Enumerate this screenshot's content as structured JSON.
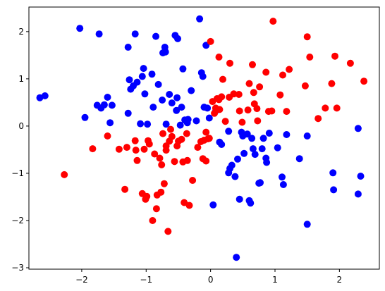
{
  "chart_data": {
    "type": "scatter",
    "title": "",
    "xlabel": "",
    "ylabel": "",
    "xlim": [
      -2.82,
      2.62
    ],
    "ylim": [
      -3.03,
      2.52
    ],
    "grid": false,
    "x_ticks": [
      {
        "value": -2,
        "label": "−2"
      },
      {
        "value": -1,
        "label": "−1"
      },
      {
        "value": 0,
        "label": "0"
      },
      {
        "value": 1,
        "label": "1"
      },
      {
        "value": 2,
        "label": "2"
      }
    ],
    "y_ticks": [
      {
        "value": 2,
        "label": "2"
      },
      {
        "value": 1,
        "label": "1"
      },
      {
        "value": 0,
        "label": "0"
      },
      {
        "value": -1,
        "label": "−1"
      },
      {
        "value": -2,
        "label": "−2"
      },
      {
        "value": -3,
        "label": "−3"
      }
    ],
    "series": [
      {
        "color": "#0000ff",
        "points": [
          [
            -2.65,
            0.6
          ],
          [
            -2.57,
            0.64
          ],
          [
            -2.03,
            2.07
          ],
          [
            -1.95,
            0.18
          ],
          [
            -1.73,
            1.95
          ],
          [
            -1.76,
            0.44
          ],
          [
            -1.7,
            0.38
          ],
          [
            -1.65,
            0.45
          ],
          [
            -1.6,
            0.61
          ],
          [
            -1.56,
            0.07
          ],
          [
            -1.53,
            0.44
          ],
          [
            -1.28,
            1.67
          ],
          [
            -1.28,
            0.27
          ],
          [
            -1.26,
            0.98
          ],
          [
            -1.24,
            0.78
          ],
          [
            -1.2,
            0.85
          ],
          [
            -1.17,
            1.95
          ],
          [
            -1.14,
            0.93
          ],
          [
            -1.09,
            0.05
          ],
          [
            -1.06,
            1.05
          ],
          [
            -1.04,
            1.22
          ],
          [
            -1.02,
            0.68
          ],
          [
            -0.98,
            0.04
          ],
          [
            -0.91,
            1.1
          ],
          [
            -0.89,
            0.4
          ],
          [
            -0.85,
            1.9
          ],
          [
            -0.81,
            0.88
          ],
          [
            -0.75,
            0.55
          ],
          [
            -0.74,
            1.55
          ],
          [
            -0.71,
            1.67
          ],
          [
            -0.7,
            1.57
          ],
          [
            -0.69,
            0.04
          ],
          [
            -0.64,
            0.67
          ],
          [
            -0.6,
            0.49
          ],
          [
            -0.55,
            1.92
          ],
          [
            -0.53,
            0.33
          ],
          [
            -0.52,
            0.6
          ],
          [
            -0.51,
            1.85
          ],
          [
            -0.47,
            0.02
          ],
          [
            -0.45,
            0.4
          ],
          [
            -0.43,
            1.21
          ],
          [
            -0.4,
            0.13
          ],
          [
            -0.36,
            0.07
          ],
          [
            -0.35,
            0.14
          ],
          [
            -0.3,
            0.75
          ],
          [
            -0.22,
            0.11
          ],
          [
            -0.17,
            2.27
          ],
          [
            -0.14,
            1.13
          ],
          [
            -0.12,
            1.05
          ],
          [
            -0.1,
            0.4
          ],
          [
            -0.07,
            1.71
          ],
          [
            -0.05,
            0.38
          ],
          [
            -0.02,
            0.17
          ],
          [
            0.04,
            -1.67
          ],
          [
            0.08,
            0.32
          ],
          [
            0.14,
            -0.34
          ],
          [
            0.17,
            -0.39
          ],
          [
            0.28,
            -0.11
          ],
          [
            0.28,
            -0.99
          ],
          [
            0.3,
            -0.9
          ],
          [
            0.33,
            -0.83
          ],
          [
            0.38,
            -1.07
          ],
          [
            0.4,
            -2.78
          ],
          [
            0.42,
            -0.7
          ],
          [
            0.45,
            -1.55
          ],
          [
            0.48,
            -0.13
          ],
          [
            0.5,
            -0.21
          ],
          [
            0.52,
            -0.58
          ],
          [
            0.57,
            -0.17
          ],
          [
            0.6,
            -1.58
          ],
          [
            0.62,
            -1.63
          ],
          [
            0.64,
            -0.26
          ],
          [
            0.66,
            -0.48
          ],
          [
            0.69,
            -0.6
          ],
          [
            0.75,
            -1.21
          ],
          [
            0.77,
            -1.2
          ],
          [
            0.8,
            -0.48
          ],
          [
            0.82,
            -0.26
          ],
          [
            0.86,
            -0.68
          ],
          [
            0.87,
            -0.77
          ],
          [
            0.91,
            -0.15
          ],
          [
            1.04,
            -0.46
          ],
          [
            1.11,
            -1.08
          ],
          [
            1.13,
            -1.24
          ],
          [
            1.18,
            -0.18
          ],
          [
            1.38,
            -0.69
          ],
          [
            1.5,
            -0.21
          ],
          [
            1.5,
            -2.08
          ],
          [
            1.9,
            -0.99
          ],
          [
            1.91,
            -1.35
          ],
          [
            2.29,
            -0.05
          ],
          [
            2.29,
            -1.44
          ],
          [
            2.33,
            -1.06
          ]
        ]
      },
      {
        "color": "#ff0000",
        "points": [
          [
            -2.27,
            -1.03
          ],
          [
            -1.83,
            -0.48
          ],
          [
            -1.6,
            -0.21
          ],
          [
            -1.42,
            -0.49
          ],
          [
            -1.33,
            -1.34
          ],
          [
            -1.3,
            -0.45
          ],
          [
            -1.17,
            -0.31
          ],
          [
            -1.16,
            -0.51
          ],
          [
            -1.14,
            -0.73
          ],
          [
            -1.06,
            -1.43
          ],
          [
            -1.03,
            -0.49
          ],
          [
            -1.01,
            -1.55
          ],
          [
            -0.99,
            -1.49
          ],
          [
            -0.97,
            -0.31
          ],
          [
            -0.95,
            -0.38
          ],
          [
            -0.9,
            -2.0
          ],
          [
            -0.87,
            -0.59
          ],
          [
            -0.84,
            -1.75
          ],
          [
            -0.83,
            -1.46
          ],
          [
            -0.79,
            -0.68
          ],
          [
            -0.76,
            -0.82
          ],
          [
            -0.77,
            -1.4
          ],
          [
            -0.74,
            -0.16
          ],
          [
            -0.72,
            -1.22
          ],
          [
            -0.69,
            -0.42
          ],
          [
            -0.69,
            -0.51
          ],
          [
            -0.66,
            -2.23
          ],
          [
            -0.64,
            -0.32
          ],
          [
            -0.62,
            -0.07
          ],
          [
            -0.6,
            -0.22
          ],
          [
            -0.56,
            -0.75
          ],
          [
            -0.52,
            -0.42
          ],
          [
            -0.5,
            -0.32
          ],
          [
            -0.45,
            -0.28
          ],
          [
            -0.43,
            -0.76
          ],
          [
            -0.41,
            -1.62
          ],
          [
            -0.37,
            -0.16
          ],
          [
            -0.36,
            -0.73
          ],
          [
            -0.33,
            -1.68
          ],
          [
            -0.28,
            -1.15
          ],
          [
            -0.2,
            -0.45
          ],
          [
            -0.15,
            -0.33
          ],
          [
            -0.12,
            -0.69
          ],
          [
            -0.1,
            -0.3
          ],
          [
            -0.07,
            -0.74
          ],
          [
            -0.07,
            -0.13
          ],
          [
            -0.04,
            -0.27
          ],
          [
            -0.02,
            -0.26
          ],
          [
            0.0,
            1.79
          ],
          [
            0.03,
            0.52
          ],
          [
            0.06,
            0.27
          ],
          [
            0.08,
            0.38
          ],
          [
            0.1,
            0.58
          ],
          [
            0.13,
            1.46
          ],
          [
            0.13,
            0.56
          ],
          [
            0.14,
            0.35
          ],
          [
            0.17,
            0.62
          ],
          [
            0.19,
            0.99
          ],
          [
            0.23,
            0.1
          ],
          [
            0.29,
            0.61
          ],
          [
            0.3,
            1.33
          ],
          [
            0.36,
            0.68
          ],
          [
            0.44,
            0.67
          ],
          [
            0.45,
            0.32
          ],
          [
            0.49,
            0.08
          ],
          [
            0.58,
            0.34
          ],
          [
            0.6,
            0.9
          ],
          [
            0.65,
            1.3
          ],
          [
            0.67,
            0.71
          ],
          [
            0.68,
            0.47
          ],
          [
            0.72,
            0.37
          ],
          [
            0.73,
            0.11
          ],
          [
            0.76,
            0.83
          ],
          [
            0.86,
            1.14
          ],
          [
            0.9,
            0.31
          ],
          [
            0.95,
            0.32
          ],
          [
            0.97,
            2.22
          ],
          [
            1.08,
            0.66
          ],
          [
            1.12,
            1.08
          ],
          [
            1.18,
            0.31
          ],
          [
            1.22,
            1.2
          ],
          [
            1.47,
            0.85
          ],
          [
            1.5,
            1.89
          ],
          [
            1.54,
            1.46
          ],
          [
            1.67,
            0.16
          ],
          [
            1.78,
            0.38
          ],
          [
            1.88,
            0.9
          ],
          [
            1.93,
            1.48
          ],
          [
            1.96,
            0.38
          ],
          [
            2.17,
            1.33
          ],
          [
            2.38,
            0.95
          ]
        ]
      }
    ]
  }
}
